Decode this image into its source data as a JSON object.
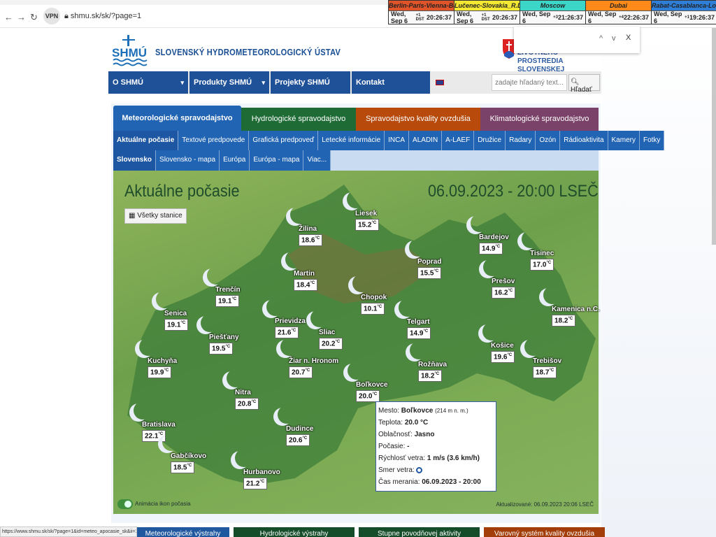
{
  "browser": {
    "url": "shmu.sk/sk/?page=1",
    "vpn_label": "VPN",
    "status_url": "https://www.shmu.sk/sk/?page=1&id=meteo_apocasie_sk&ii=11927"
  },
  "clocks": [
    {
      "city": "Berlin-Paris-Vienna-Belgrade",
      "date": "Wed, Sep 6",
      "offset": "+1 DST",
      "time": "20:26:37",
      "color": "#e0542a"
    },
    {
      "city": "Lučenec-Slovakia_R.Dávid",
      "date": "Wed, Sep 6",
      "offset": "+1 DST",
      "time": "20:26:37",
      "color": "#f4e832"
    },
    {
      "city": "Moscow",
      "date": "Wed, Sep 6",
      "offset": "+3",
      "time": "21:26:37",
      "color": "#3cd6c8"
    },
    {
      "city": "Dubai",
      "date": "Wed, Sep 6",
      "offset": "+4",
      "time": "22:26:37",
      "color": "#ff8a1a"
    },
    {
      "city": "Rabat-Casablanca-London",
      "date": "Wed, Sep 6",
      "offset": "+1",
      "time": "19:26:37",
      "color": "#2f7fd8"
    }
  ],
  "find": {
    "up": "^",
    "down": "v",
    "close": "X"
  },
  "header": {
    "logo": "SHMÚ",
    "title": "SLOVENSKÝ HYDROMETEOROLOGICKÝ ÚSTAV",
    "ministry": "ŽIVOTNÉHO PROSTREDIA SLOVENSKEJ REPUBLIKY"
  },
  "menu": [
    {
      "label": "O SHMÚ",
      "dropdown": true
    },
    {
      "label": "Produkty SHMÚ",
      "dropdown": true
    },
    {
      "label": "Projekty SHMÚ",
      "dropdown": false
    },
    {
      "label": "Kontakt",
      "dropdown": false
    }
  ],
  "search": {
    "placeholder": "zadajte hľadaný text...",
    "button": "Hľadať"
  },
  "top_tabs": [
    {
      "label": "Meteorologické spravodajstvo",
      "color": "#2164b3",
      "active": true
    },
    {
      "label": "Hydrologické spravodajstvo",
      "color": "#1e6b35"
    },
    {
      "label": "Spravodajstvo kvality ovzdušia",
      "color": "#b84a0c"
    },
    {
      "label": "Klimatologické spravodajstvo",
      "color": "#7a4268"
    }
  ],
  "sub_tabs": [
    "Aktuálne počasie",
    "Textové predpovede",
    "Grafická predpoveď",
    "Letecké informácie",
    "INCA",
    "ALADIN",
    "A-LAEF",
    "Družice",
    "Radary",
    "Ozón",
    "Rádioaktivita",
    "Kamery",
    "Fotky"
  ],
  "sub_tabs2": [
    "Slovensko",
    "Slovensko - mapa",
    "Európa",
    "Európa - mapa",
    "Viac..."
  ],
  "map": {
    "title": "Aktuálne počasie",
    "datetime": "06.09.2023 - 20:00 LSEČ",
    "all_stations": "Všetky stanice",
    "unit": "°C",
    "stations": [
      {
        "name": "Liesek",
        "temp": "15.2"
      },
      {
        "name": "Žilina",
        "temp": "18.6"
      },
      {
        "name": "Bardejov",
        "temp": "14.9"
      },
      {
        "name": "Tisinec",
        "temp": "17.0"
      },
      {
        "name": "Poprad",
        "temp": "15.5"
      },
      {
        "name": "Martin",
        "temp": "18.4"
      },
      {
        "name": "Prešov",
        "temp": "16.2"
      },
      {
        "name": "Trenčín",
        "temp": "19.1"
      },
      {
        "name": "Chopok",
        "temp": "10.1"
      },
      {
        "name": "Kamenica n.C.",
        "temp": "18.2"
      },
      {
        "name": "Senica",
        "temp": "19.1"
      },
      {
        "name": "Prievidza",
        "temp": "21.6"
      },
      {
        "name": "Sliac",
        "temp": "20.2"
      },
      {
        "name": "Telgart",
        "temp": "14.9"
      },
      {
        "name": "Piešťany",
        "temp": "19.5"
      },
      {
        "name": "Košice",
        "temp": "19.6"
      },
      {
        "name": "Žiar n. Hronom",
        "temp": "20.7"
      },
      {
        "name": "Kuchyňa",
        "temp": "19.9"
      },
      {
        "name": "Rožňava",
        "temp": "18.2"
      },
      {
        "name": "Trebišov",
        "temp": "18.7"
      },
      {
        "name": "Boľkovce",
        "temp": "20.0"
      },
      {
        "name": "Nitra",
        "temp": "20.8"
      },
      {
        "name": "Bratislava",
        "temp": "22.1"
      },
      {
        "name": "Dudince",
        "temp": "20.6"
      },
      {
        "name": "Gabčíkovo",
        "temp": "18.5"
      },
      {
        "name": "Hurbanovo",
        "temp": "21.2"
      }
    ],
    "animation_label": "Animácia ikon počasia",
    "animation_on": true,
    "updated": "Aktualizované: 06.09.2023 20:06 LSEČ"
  },
  "tooltip": {
    "city_label": "Mesto:",
    "city": "Boľkovce",
    "altitude": "(214 m n. m.)",
    "temp_label": "Teplota:",
    "temp": "20.0 °C",
    "cloud_label": "Oblačnosť:",
    "cloud": "Jasno",
    "weather_label": "Počasie:",
    "weather": "-",
    "wind_label": "Rýchlosť vetra:",
    "wind": "1 m/s (3.6 km/h)",
    "dir_label": "Smer vetra:",
    "time_label": "Čas merania:",
    "time": "06.09.2023 - 20:00"
  },
  "bottom_tiles": [
    {
      "label": "Meteorologické výstrahy",
      "color": "#2058a0"
    },
    {
      "label": "Hydrologické výstrahy",
      "color": "#154d2a"
    },
    {
      "label": "Stupne povodňovej aktivity",
      "color": "#154d2a"
    },
    {
      "label": "Varovný systém kvality ovzdušia",
      "color": "#a33d0a"
    }
  ]
}
